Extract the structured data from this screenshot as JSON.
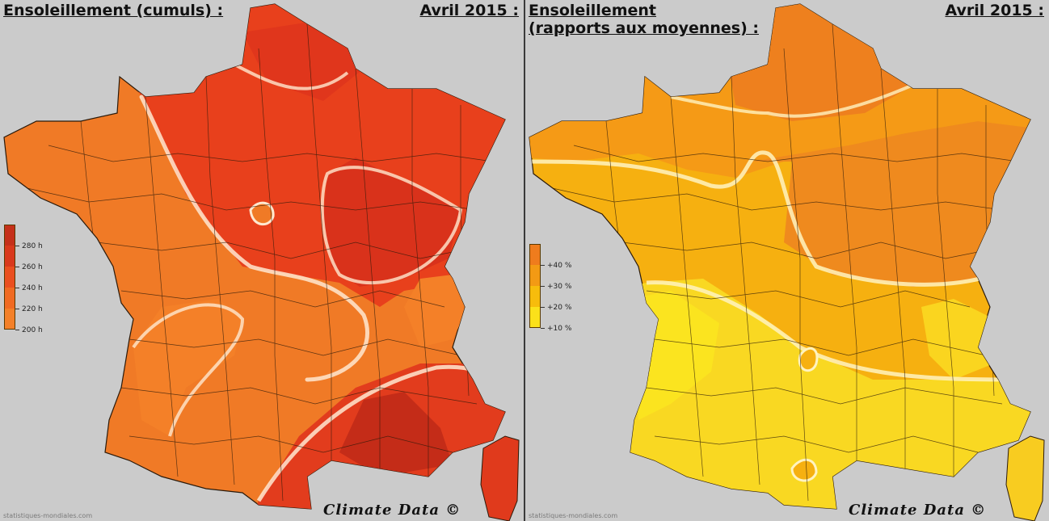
{
  "left_panel": {
    "title_lines": [
      "Ensoleillement (cumuls) :"
    ],
    "date": "Avril 2015 :",
    "credit": "Climate Data ©",
    "source": "statistiques-mondiales.com",
    "legend": [
      {
        "label": "280 h",
        "color": "#c5301a"
      },
      {
        "label": "260 h",
        "color": "#d9391c"
      },
      {
        "label": "240 h",
        "color": "#ea4f1f"
      },
      {
        "label": "220 h",
        "color": "#f06a22"
      },
      {
        "label": "200 h",
        "color": "#f48028"
      }
    ]
  },
  "right_panel": {
    "title_lines": [
      "Ensoleillement",
      "(rapports aux moyennes) :"
    ],
    "date": "Avril 2015 :",
    "credit": "Climate Data ©",
    "source": "statistiques-mondiales.com",
    "legend": [
      {
        "label": "+40 %",
        "color": "#ef7c1d"
      },
      {
        "label": "+30 %",
        "color": "#f39a14"
      },
      {
        "label": "+20 %",
        "color": "#f7bc0c"
      },
      {
        "label": "+10 %",
        "color": "#fbe11a"
      }
    ]
  },
  "colors": {
    "background": "#cbcbcb",
    "border": "#3a3a3a",
    "left_base": "#f07a26",
    "left_north": "#e8401c",
    "left_east": "#e0361c",
    "left_south": "#d0301a",
    "right_north": "#ef8a1e",
    "right_center": "#f6b010",
    "right_south": "#f9d822"
  }
}
